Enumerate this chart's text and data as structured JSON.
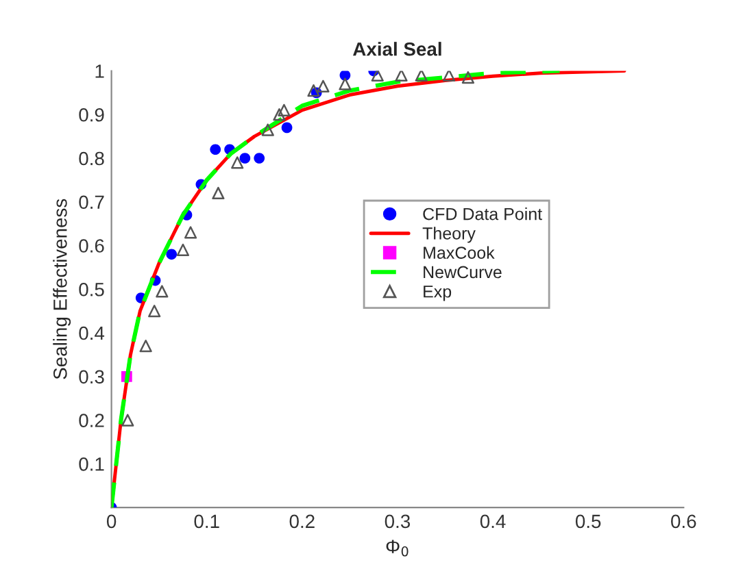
{
  "chart_data": {
    "type": "scatter",
    "title": "Axial Seal",
    "xlabel": "Φ$_{0}$",
    "ylabel": "Sealing Effectiveness",
    "xlim": [
      0,
      0.6
    ],
    "ylim": [
      0,
      1
    ],
    "xticks": [
      0,
      0.1,
      0.2,
      0.3,
      0.4,
      0.5,
      0.6
    ],
    "yticks": [
      0.1,
      0.2,
      0.3,
      0.4,
      0.5,
      0.6,
      0.7,
      0.8,
      0.9,
      1
    ],
    "legend": "right",
    "grid": false,
    "series": [
      {
        "name": "CFD Data Point",
        "marker": "circle",
        "color": "#0000ff",
        "x": [
          0,
          0.031,
          0.046,
          0.063,
          0.079,
          0.094,
          0.109,
          0.124,
          0.14,
          0.155,
          0.184,
          0.215,
          0.245,
          0.275
        ],
        "values": [
          0,
          0.48,
          0.52,
          0.58,
          0.67,
          0.74,
          0.82,
          0.82,
          0.8,
          0.8,
          0.87,
          0.95,
          0.99,
          1.0
        ]
      },
      {
        "name": "Theory",
        "type": "line",
        "line_style": "solid",
        "marker": "none",
        "color": "#ff0000",
        "x": [
          0,
          0.01,
          0.02,
          0.03,
          0.05,
          0.075,
          0.1,
          0.125,
          0.15,
          0.2,
          0.25,
          0.3,
          0.35,
          0.4,
          0.45,
          0.538
        ],
        "values": [
          0,
          0.2,
          0.35,
          0.45,
          0.56,
          0.67,
          0.75,
          0.81,
          0.85,
          0.91,
          0.945,
          0.965,
          0.978,
          0.988,
          0.995,
          1.0
        ]
      },
      {
        "name": "MaxCook",
        "marker": "square",
        "color": "#ff00ff",
        "x": [
          0.016
        ],
        "values": [
          0.3
        ]
      },
      {
        "name": "NewCurve",
        "type": "line",
        "line_style": "dashed",
        "marker": "none",
        "color": "#00ff00",
        "x": [
          0,
          0.01,
          0.02,
          0.03,
          0.05,
          0.075,
          0.1,
          0.125,
          0.15,
          0.2,
          0.25,
          0.3,
          0.35,
          0.4,
          0.47
        ],
        "values": [
          0,
          0.2,
          0.35,
          0.45,
          0.56,
          0.67,
          0.75,
          0.81,
          0.85,
          0.92,
          0.955,
          0.975,
          0.985,
          0.995,
          1.0
        ]
      },
      {
        "name": "Exp",
        "marker": "triangle",
        "color": "#555555",
        "x": [
          0.017,
          0.036,
          0.045,
          0.053,
          0.075,
          0.083,
          0.112,
          0.132,
          0.164,
          0.176,
          0.181,
          0.212,
          0.222,
          0.245,
          0.279,
          0.304,
          0.325,
          0.354,
          0.374
        ],
        "values": [
          0.2,
          0.37,
          0.45,
          0.495,
          0.59,
          0.63,
          0.72,
          0.79,
          0.865,
          0.9,
          0.91,
          0.955,
          0.965,
          0.97,
          0.99,
          0.99,
          0.99,
          0.99,
          0.985
        ]
      }
    ]
  }
}
